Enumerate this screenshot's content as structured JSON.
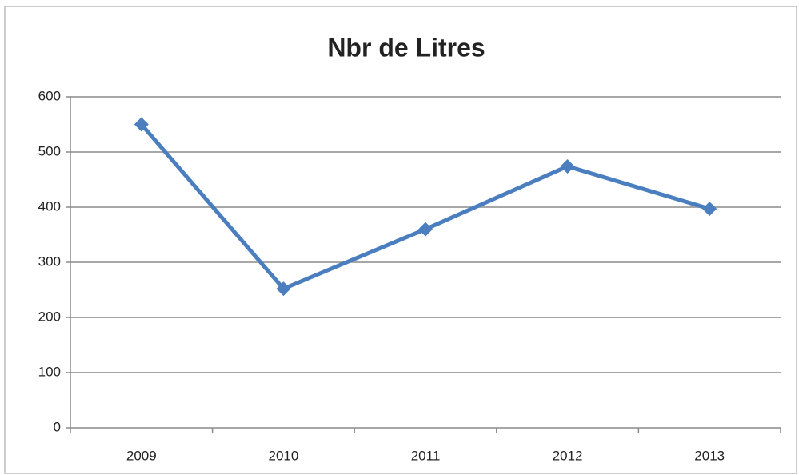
{
  "chart_data": {
    "type": "line",
    "title": "Nbr de Litres",
    "categories": [
      "2009",
      "2010",
      "2011",
      "2012",
      "2013"
    ],
    "series": [
      {
        "name": "Nbr de Litres",
        "color": "#4a7ebf",
        "values": [
          550,
          252,
          360,
          474,
          397
        ]
      }
    ],
    "ylim": [
      0,
      600
    ],
    "yticks": [
      0,
      100,
      200,
      300,
      400,
      500,
      600
    ],
    "grid": true
  }
}
